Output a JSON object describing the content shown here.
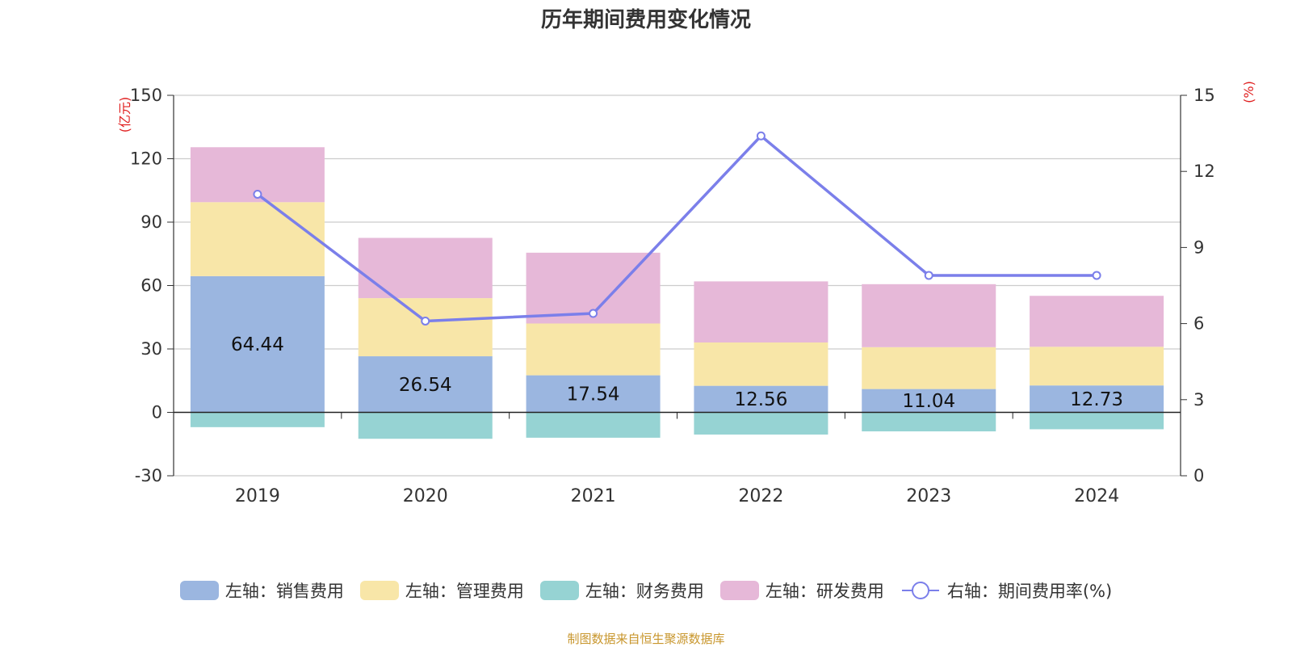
{
  "title": "历年期间费用变化情况",
  "source": "制图数据来自恒生聚源数据库",
  "colors": {
    "sales": "#9bb6e0",
    "admin": "#f8e6a8",
    "finance": "#96d3d3",
    "rd": "#e6b8d8",
    "rate": "#7b7fea",
    "axis_unit": "#e02020",
    "grid": "#cccccc"
  },
  "legend": [
    {
      "label": "左轴：销售费用",
      "color": "#9bb6e0",
      "kind": "bar"
    },
    {
      "label": "左轴：管理费用",
      "color": "#f8e6a8",
      "kind": "bar"
    },
    {
      "label": "左轴：财务费用",
      "color": "#96d3d3",
      "kind": "bar"
    },
    {
      "label": "左轴：研发费用",
      "color": "#e6b8d8",
      "kind": "bar"
    },
    {
      "label": "右轴：期间费用率(%)",
      "color": "#7b7fea",
      "kind": "line"
    }
  ],
  "chart_data": {
    "type": "bar",
    "stacked": true,
    "categories": [
      "2019",
      "2020",
      "2021",
      "2022",
      "2023",
      "2024"
    ],
    "left_axis": {
      "unit_label": "(亿元)",
      "range": [
        -30,
        150
      ],
      "ticks": [
        -30,
        0,
        30,
        60,
        90,
        120,
        150
      ]
    },
    "right_axis": {
      "unit_label": "(%)",
      "range": [
        0,
        15
      ],
      "ticks": [
        0,
        3,
        6,
        9,
        12,
        15
      ]
    },
    "series": [
      {
        "name": "销售费用",
        "axis": "left",
        "type": "bar",
        "color_key": "sales",
        "values": [
          64.44,
          26.54,
          17.54,
          12.56,
          11.04,
          12.73
        ],
        "show_labels": true
      },
      {
        "name": "管理费用",
        "axis": "left",
        "type": "bar",
        "color_key": "admin",
        "values": [
          35.0,
          27.5,
          24.5,
          20.5,
          19.8,
          18.3
        ],
        "show_labels": false
      },
      {
        "name": "财务费用",
        "axis": "left",
        "type": "bar",
        "color_key": "finance",
        "values": [
          -7.0,
          -12.5,
          -12.0,
          -10.5,
          -9.0,
          -8.0
        ],
        "show_labels": false
      },
      {
        "name": "研发费用",
        "axis": "left",
        "type": "bar",
        "color_key": "rd",
        "values": [
          26.0,
          28.5,
          33.5,
          28.9,
          29.8,
          24.1
        ],
        "show_labels": false
      },
      {
        "name": "期间费用率(%)",
        "axis": "right",
        "type": "line",
        "color_key": "rate",
        "values": [
          11.1,
          6.1,
          6.4,
          13.4,
          7.9,
          7.9
        ]
      }
    ]
  }
}
